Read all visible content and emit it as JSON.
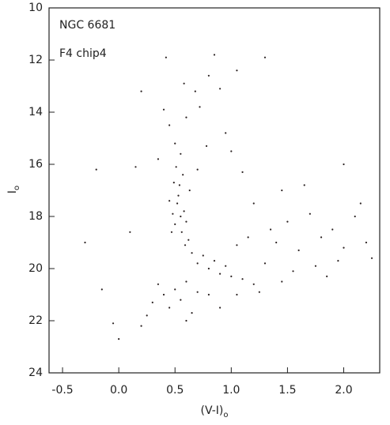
{
  "chart_data": {
    "type": "scatter",
    "annotations": [
      "NGC 6681",
      "F4 chip4"
    ],
    "x_label": "(V-I)",
    "x_label_subscript": "o",
    "y_label": "I",
    "y_label_subscript": "o",
    "xlim": [
      -0.62,
      2.32
    ],
    "xticks": [
      -0.5,
      {
        "value": 0,
        "label": "0.0"
      },
      0.5,
      {
        "value": 1,
        "label": "1.0"
      },
      1.5,
      {
        "value": 2,
        "label": "2.0"
      }
    ],
    "ylim": [
      24,
      10
    ],
    "yticks": [
      10,
      12,
      14,
      16,
      18,
      20,
      22,
      24
    ],
    "color": "#2b2222",
    "x": [
      0.52,
      0.55,
      0.5,
      0.58,
      0.53,
      0.56,
      0.48,
      0.6,
      0.54,
      0.57,
      0.51,
      0.55,
      0.5,
      0.62,
      0.47,
      0.59,
      0.65,
      0.45,
      0.63,
      0.49,
      0.45,
      0.6,
      0.72,
      0.8,
      0.85,
      0.9,
      0.68,
      0.4,
      0.95,
      0.78,
      0.35,
      0.7,
      1.05,
      0.58,
      0.42,
      0.7,
      0.8,
      0.9,
      1.0,
      1.1,
      1.2,
      0.75,
      0.85,
      0.95,
      0.6,
      0.5,
      0.4,
      0.3,
      0.35,
      0.45,
      0.55,
      0.65,
      0.25,
      0.8,
      1.05,
      1.25,
      0.7,
      0.2,
      0.6,
      0.9,
      1.4,
      1.6,
      1.8,
      2.0,
      2.2,
      1.5,
      1.7,
      1.9,
      2.1,
      2.25,
      1.3,
      1.55,
      1.75,
      1.35,
      1.95,
      1.2,
      1.45,
      1.65,
      1.1,
      1.0,
      2.15,
      1.85,
      1.45,
      1.15,
      1.05,
      -0.2,
      -0.05,
      -0.3,
      0.1,
      0.15,
      0.0,
      0.2,
      1.3,
      2.0,
      -0.15
    ],
    "values": [
      17.5,
      18.0,
      18.3,
      17.8,
      17.2,
      18.6,
      17.9,
      18.2,
      16.8,
      16.4,
      16.1,
      15.6,
      15.2,
      18.9,
      18.6,
      19.1,
      19.4,
      17.4,
      17.0,
      16.7,
      14.5,
      14.2,
      13.8,
      12.6,
      11.8,
      13.1,
      13.2,
      13.9,
      14.8,
      15.3,
      15.8,
      16.2,
      12.4,
      12.9,
      11.9,
      19.8,
      20.0,
      20.2,
      20.3,
      20.4,
      20.6,
      19.5,
      19.7,
      19.9,
      20.5,
      20.8,
      21.0,
      21.3,
      20.6,
      21.5,
      21.2,
      21.7,
      21.8,
      21.0,
      21.0,
      20.9,
      20.9,
      22.2,
      22.0,
      21.5,
      19.0,
      19.3,
      18.8,
      19.2,
      19.0,
      18.2,
      17.9,
      18.5,
      18.0,
      19.6,
      19.8,
      20.1,
      19.9,
      18.5,
      19.7,
      17.5,
      17.0,
      16.8,
      16.3,
      15.5,
      17.5,
      20.3,
      20.5,
      18.8,
      19.1,
      16.2,
      22.1,
      19.0,
      18.6,
      16.1,
      22.7,
      13.2,
      11.9,
      16.0,
      20.8
    ]
  }
}
